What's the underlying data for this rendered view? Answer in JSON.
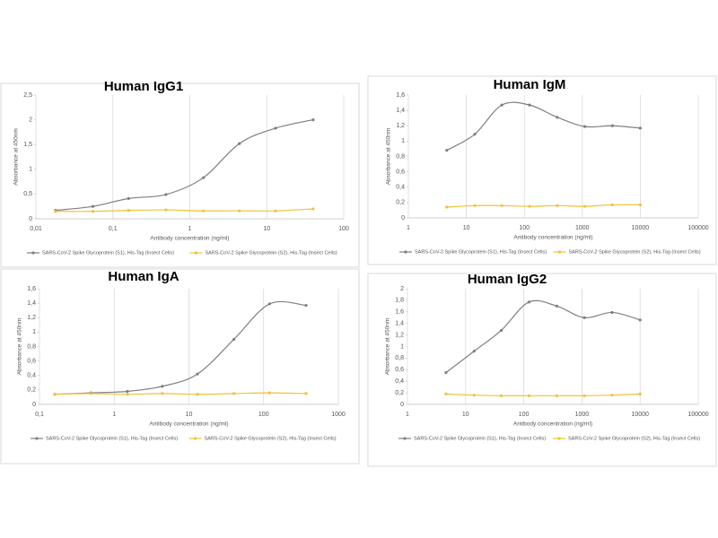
{
  "chart_data": [
    {
      "type": "line",
      "title": "Human IgG1",
      "x_label": "Antibody concentration (ng/ml)",
      "y_label": "Absorbance at 450nm",
      "log_x": true,
      "xgrid": true,
      "xlim": [
        0.01,
        100
      ],
      "xticks": [
        {
          "value": 0.01,
          "label": "0,01"
        },
        {
          "value": 0.1,
          "label": "0,1"
        },
        1,
        10,
        100
      ],
      "ylim": [
        0,
        2.5
      ],
      "yticks": [
        0,
        {
          "value": 0.5,
          "label": "0,5"
        },
        1,
        {
          "value": 1.5,
          "label": "1,5"
        },
        2,
        {
          "value": 2.5,
          "label": "2,5"
        }
      ],
      "x": [
        0.018,
        0.055,
        0.16,
        0.49,
        1.5,
        4.4,
        13,
        40
      ],
      "series": [
        {
          "name": "SARS-CoV-2 Spike Glycoprotein (S1), His-Tag (Insect Cells)",
          "color": "#7f7f7f",
          "values": [
            0.17,
            0.25,
            0.41,
            0.49,
            0.83,
            1.52,
            1.83,
            2.0
          ]
        },
        {
          "name": "SARS-CoV-2 Spike Glycoprotein (S2), His-Tag (Insect Cells)",
          "color": "#f2c136",
          "values": [
            0.15,
            0.15,
            0.17,
            0.18,
            0.16,
            0.16,
            0.16,
            0.2
          ]
        }
      ]
    },
    {
      "type": "line",
      "title": "Human IgM",
      "x_label": "Antibody concentration (ng/ml)",
      "y_label": "Absorbance at 450nm",
      "log_x": true,
      "xgrid": true,
      "xlim": [
        1,
        100000
      ],
      "xticks": [
        1,
        10,
        100,
        1000,
        10000,
        100000
      ],
      "ylim": [
        0,
        1.6
      ],
      "yticks": [
        0,
        {
          "value": 0.2,
          "label": "0,2"
        },
        {
          "value": 0.4,
          "label": "0,4"
        },
        {
          "value": 0.6,
          "label": "0,6"
        },
        {
          "value": 0.8,
          "label": "0,8"
        },
        1,
        {
          "value": 1.2,
          "label": "1,2"
        },
        {
          "value": 1.4,
          "label": "1,4"
        },
        {
          "value": 1.6,
          "label": "1,6"
        }
      ],
      "x": [
        4.6,
        14,
        41,
        123,
        370,
        1100,
        3300,
        10000
      ],
      "series": [
        {
          "name": "SARS-CoV-2 Spike Glycoprotein (S1), His-Tag (Insect Cells)",
          "color": "#7f7f7f",
          "values": [
            0.88,
            1.09,
            1.47,
            1.47,
            1.31,
            1.19,
            1.2,
            1.17
          ]
        },
        {
          "name": "SARS-CoV-2 Spike Glycoprotein (S2), His-Tag (Insect Cells)",
          "color": "#f2c136",
          "values": [
            0.14,
            0.16,
            0.16,
            0.15,
            0.16,
            0.15,
            0.17,
            0.17
          ]
        }
      ]
    },
    {
      "type": "line",
      "title": "Human IgA",
      "x_label": "Antibody concentration (ng/ml)",
      "y_label": "Absorbance at 450nm",
      "log_x": true,
      "xgrid": true,
      "xlim": [
        0.1,
        1000
      ],
      "xticks": [
        {
          "value": 0.1,
          "label": "0,1"
        },
        1,
        10,
        100,
        1000
      ],
      "ylim": [
        0,
        1.6
      ],
      "yticks": [
        0,
        {
          "value": 0.2,
          "label": "0,2"
        },
        {
          "value": 0.4,
          "label": "0,4"
        },
        {
          "value": 0.6,
          "label": "0,6"
        },
        {
          "value": 0.8,
          "label": "0,8"
        },
        1,
        {
          "value": 1.2,
          "label": "1,2"
        },
        {
          "value": 1.4,
          "label": "1,4"
        },
        {
          "value": 1.6,
          "label": "1,6"
        }
      ],
      "x": [
        0.16,
        0.49,
        1.5,
        4.4,
        13,
        40,
        120,
        370
      ],
      "series": [
        {
          "name": "SARS-CoV-2 Spike Glycoprotein (S1), His-Tag (Insect Cells)",
          "color": "#7f7f7f",
          "values": [
            0.14,
            0.16,
            0.18,
            0.25,
            0.42,
            0.9,
            1.39,
            1.37
          ]
        },
        {
          "name": "SARS-CoV-2 Spike Glycoprotein (S2), His-Tag (Insect Cells)",
          "color": "#f2c136",
          "values": [
            0.14,
            0.15,
            0.14,
            0.15,
            0.14,
            0.15,
            0.16,
            0.15
          ]
        }
      ]
    },
    {
      "type": "line",
      "title": "Human IgG2",
      "x_label": "Antibody concentration (ng/ml)",
      "y_label": "Absorbance at 450nm",
      "log_x": true,
      "xgrid": true,
      "xlim": [
        1,
        100000
      ],
      "xticks": [
        1,
        10,
        100,
        1000,
        10000,
        100000
      ],
      "ylim": [
        0,
        2
      ],
      "yticks": [
        0,
        {
          "value": 0.2,
          "label": "0,2"
        },
        {
          "value": 0.4,
          "label": "0,4"
        },
        {
          "value": 0.6,
          "label": "0,6"
        },
        {
          "value": 0.8,
          "label": "0,8"
        },
        1,
        {
          "value": 1.2,
          "label": "1,2"
        },
        {
          "value": 1.4,
          "label": "1,4"
        },
        {
          "value": 1.6,
          "label": "1,6"
        },
        {
          "value": 1.8,
          "label": "1,8"
        },
        2
      ],
      "x": [
        4.6,
        14,
        41,
        123,
        370,
        1100,
        3300,
        10000
      ],
      "series": [
        {
          "name": "SARS-CoV-2 Spike Glycoprotein (S1), His-Tag (Insect Cells)",
          "color": "#7f7f7f",
          "values": [
            0.55,
            0.92,
            1.28,
            1.77,
            1.7,
            1.5,
            1.59,
            1.46
          ]
        },
        {
          "name": "SARS-CoV-2 Spike Glycoprotein (S2), His-Tag (Insect Cells)",
          "color": "#f2c136",
          "values": [
            0.18,
            0.16,
            0.15,
            0.15,
            0.15,
            0.15,
            0.16,
            0.18
          ]
        }
      ]
    }
  ]
}
